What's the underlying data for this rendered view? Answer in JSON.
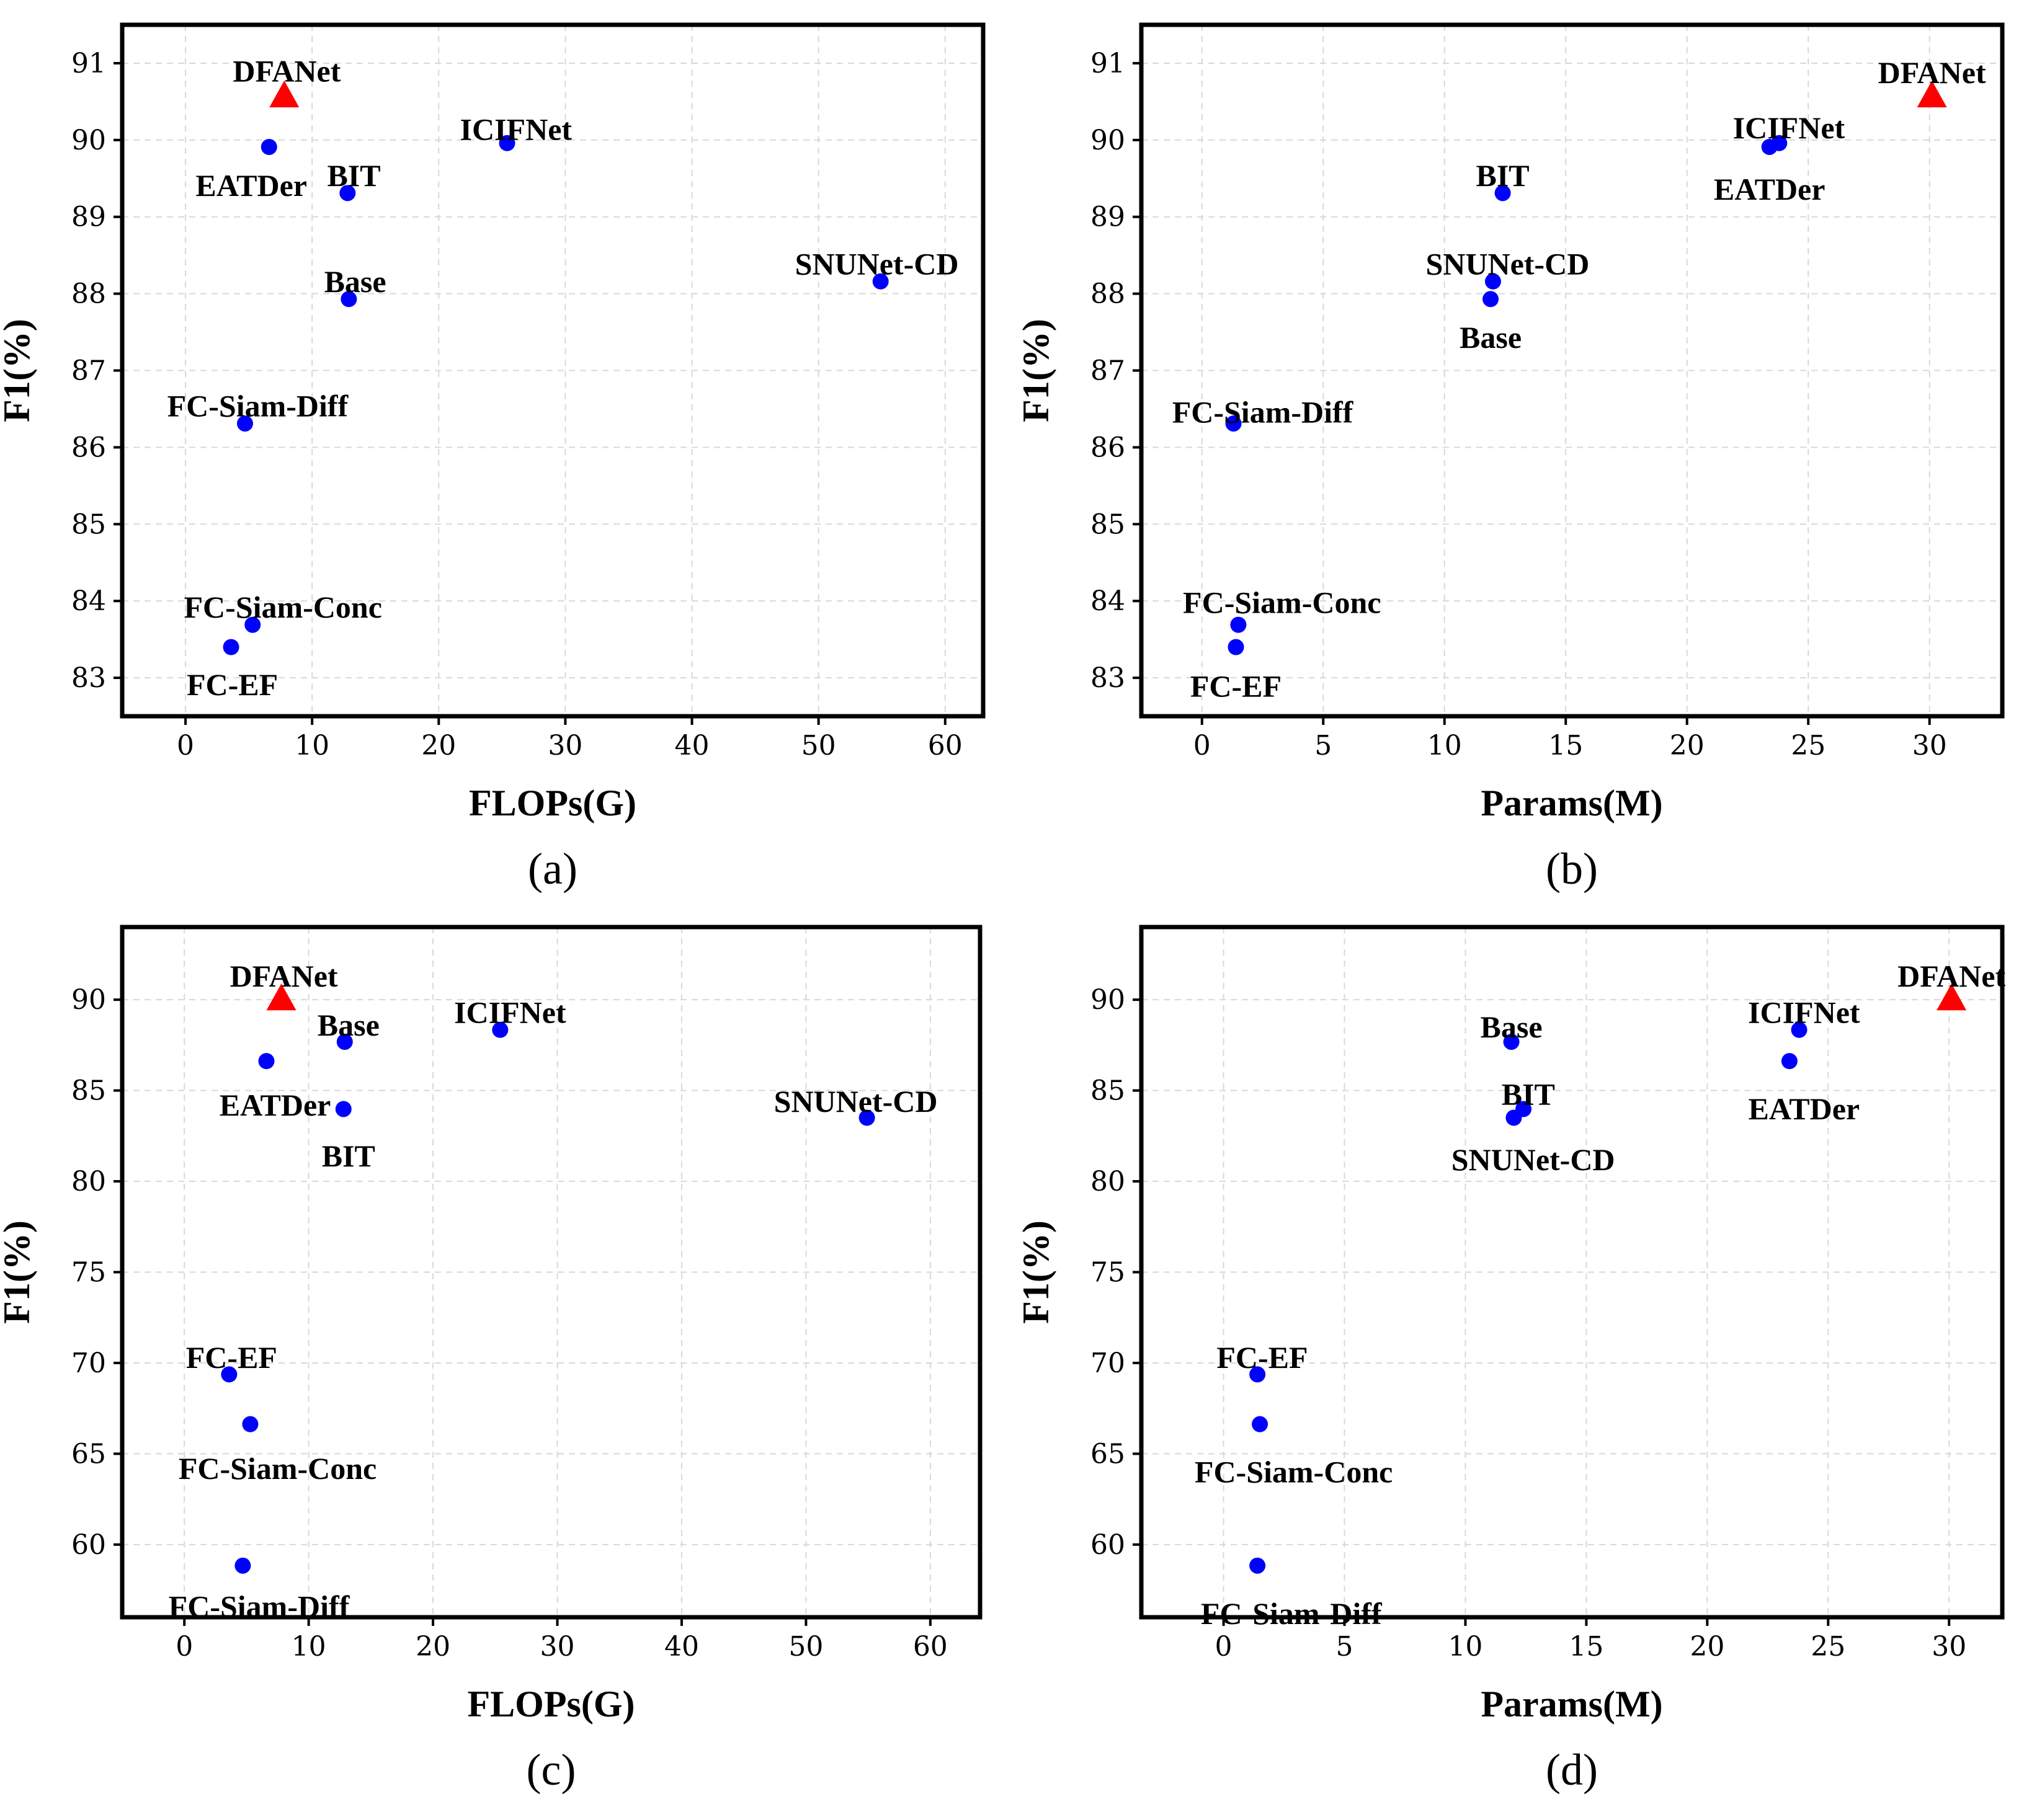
{
  "colors": {
    "model": "#0000ff",
    "highlight": "#ff0000",
    "axes": "#000000",
    "grid": "#d8d8d8"
  },
  "chart_data": [
    {
      "type": "scatter",
      "caption": "(a)",
      "xlabel": "FLOPs(G)",
      "ylabel": "F1(%)",
      "xlim": [
        -5,
        63
      ],
      "ylim": [
        82.5,
        91.5
      ],
      "xticks": [
        0,
        10,
        20,
        30,
        40,
        50,
        60
      ],
      "yticks": [
        83,
        84,
        85,
        86,
        87,
        88,
        89,
        90,
        91
      ],
      "grid": true,
      "points": [
        {
          "label": "DFANet",
          "x": 7.8,
          "y": 90.58,
          "marker": "triangle",
          "color": "#ff0000",
          "lx": 8.0,
          "ly": 90.9,
          "anchor": "middle"
        },
        {
          "label": "EATDer",
          "x": 6.6,
          "y": 89.91,
          "marker": "circle",
          "color": "#0000ff",
          "lx": 5.2,
          "ly": 89.41,
          "anchor": "middle"
        },
        {
          "label": "BIT",
          "x": 12.8,
          "y": 89.31,
          "marker": "circle",
          "color": "#0000ff",
          "lx": 13.3,
          "ly": 89.54,
          "anchor": "middle"
        },
        {
          "label": "ICIFNet",
          "x": 25.4,
          "y": 89.96,
          "marker": "circle",
          "color": "#0000ff",
          "lx": 26.1,
          "ly": 90.14,
          "anchor": "middle"
        },
        {
          "label": "Base",
          "x": 12.9,
          "y": 87.93,
          "marker": "circle",
          "color": "#0000ff",
          "lx": 13.4,
          "ly": 88.16,
          "anchor": "middle"
        },
        {
          "label": "SNUNet-CD",
          "x": 54.9,
          "y": 88.16,
          "marker": "circle",
          "color": "#0000ff",
          "lx": 54.6,
          "ly": 88.39,
          "anchor": "middle"
        },
        {
          "label": "FC-Siam-Diff",
          "x": 4.7,
          "y": 86.31,
          "marker": "circle",
          "color": "#0000ff",
          "lx": 5.7,
          "ly": 86.54,
          "anchor": "middle"
        },
        {
          "label": "FC-Siam-Conc",
          "x": 5.3,
          "y": 83.69,
          "marker": "circle",
          "color": "#0000ff",
          "lx": 7.7,
          "ly": 83.92,
          "anchor": "middle"
        },
        {
          "label": "FC-EF",
          "x": 3.6,
          "y": 83.4,
          "marker": "circle",
          "color": "#0000ff",
          "lx": 3.7,
          "ly": 82.91,
          "anchor": "middle"
        }
      ]
    },
    {
      "type": "scatter",
      "caption": "(b)",
      "xlabel": "Params(M)",
      "ylabel": "F1(%)",
      "xlim": [
        -2.5,
        33
      ],
      "ylim": [
        82.5,
        91.5
      ],
      "xticks": [
        0,
        5,
        10,
        15,
        20,
        25,
        30
      ],
      "yticks": [
        83,
        84,
        85,
        86,
        87,
        88,
        89,
        90,
        91
      ],
      "grid": true,
      "points": [
        {
          "label": "DFANet",
          "x": 30.1,
          "y": 90.58,
          "marker": "triangle",
          "color": "#ff0000",
          "lx": 30.1,
          "ly": 90.88,
          "anchor": "middle"
        },
        {
          "label": "ICIFNet",
          "x": 23.8,
          "y": 89.96,
          "marker": "circle",
          "color": "#0000ff",
          "lx": 24.2,
          "ly": 90.16,
          "anchor": "middle"
        },
        {
          "label": "EATDer",
          "x": 23.4,
          "y": 89.91,
          "marker": "circle",
          "color": "#0000ff",
          "lx": 23.4,
          "ly": 89.36,
          "anchor": "middle"
        },
        {
          "label": "BIT",
          "x": 12.4,
          "y": 89.31,
          "marker": "circle",
          "color": "#0000ff",
          "lx": 12.4,
          "ly": 89.54,
          "anchor": "middle"
        },
        {
          "label": "SNUNet-CD",
          "x": 12.0,
          "y": 88.16,
          "marker": "circle",
          "color": "#0000ff",
          "lx": 12.6,
          "ly": 88.39,
          "anchor": "middle"
        },
        {
          "label": "Base",
          "x": 11.9,
          "y": 87.93,
          "marker": "circle",
          "color": "#0000ff",
          "lx": 11.9,
          "ly": 87.43,
          "anchor": "middle"
        },
        {
          "label": "FC-Siam-Diff",
          "x": 1.3,
          "y": 86.31,
          "marker": "circle",
          "color": "#0000ff",
          "lx": 2.5,
          "ly": 86.46,
          "anchor": "middle"
        },
        {
          "label": "FC-Siam-Conc",
          "x": 1.5,
          "y": 83.69,
          "marker": "circle",
          "color": "#0000ff",
          "lx": 3.3,
          "ly": 83.98,
          "anchor": "middle"
        },
        {
          "label": "FC-EF",
          "x": 1.4,
          "y": 83.4,
          "marker": "circle",
          "color": "#0000ff",
          "lx": 1.4,
          "ly": 82.89,
          "anchor": "middle"
        }
      ]
    },
    {
      "type": "scatter",
      "caption": "(c)",
      "xlabel": "FLOPs(G)",
      "ylabel": "F1(%)",
      "xlim": [
        -5,
        64
      ],
      "ylim": [
        56,
        94
      ],
      "xticks": [
        0,
        10,
        20,
        30,
        40,
        50,
        60
      ],
      "yticks": [
        60,
        65,
        70,
        75,
        80,
        85,
        90
      ],
      "grid": true,
      "points": [
        {
          "label": "DFANet",
          "x": 7.8,
          "y": 90.07,
          "marker": "triangle",
          "color": "#ff0000",
          "lx": 8.0,
          "ly": 91.3,
          "anchor": "middle"
        },
        {
          "label": "Base",
          "x": 12.9,
          "y": 87.68,
          "marker": "circle",
          "color": "#0000ff",
          "lx": 13.2,
          "ly": 88.6,
          "anchor": "middle"
        },
        {
          "label": "ICIFNet",
          "x": 25.4,
          "y": 88.34,
          "marker": "circle",
          "color": "#0000ff",
          "lx": 26.2,
          "ly": 89.3,
          "anchor": "middle"
        },
        {
          "label": "EATDer",
          "x": 6.6,
          "y": 86.62,
          "marker": "circle",
          "color": "#0000ff",
          "lx": 7.3,
          "ly": 84.2,
          "anchor": "middle"
        },
        {
          "label": "BIT",
          "x": 12.8,
          "y": 83.98,
          "marker": "circle",
          "color": "#0000ff",
          "lx": 13.2,
          "ly": 81.4,
          "anchor": "middle"
        },
        {
          "label": "SNUNet-CD",
          "x": 54.9,
          "y": 83.5,
          "marker": "circle",
          "color": "#0000ff",
          "lx": 54.0,
          "ly": 84.4,
          "anchor": "middle"
        },
        {
          "label": "FC-EF",
          "x": 3.6,
          "y": 69.37,
          "marker": "circle",
          "color": "#0000ff",
          "lx": 3.8,
          "ly": 70.3,
          "anchor": "middle"
        },
        {
          "label": "FC-Siam-Conc",
          "x": 5.3,
          "y": 66.63,
          "marker": "circle",
          "color": "#0000ff",
          "lx": 7.5,
          "ly": 64.2,
          "anchor": "middle"
        },
        {
          "label": "FC-Siam-Diff",
          "x": 4.7,
          "y": 58.84,
          "marker": "circle",
          "color": "#0000ff",
          "lx": 6.0,
          "ly": 56.6,
          "anchor": "middle"
        }
      ]
    },
    {
      "type": "scatter",
      "caption": "(d)",
      "xlabel": "Params(M)",
      "ylabel": "F1(%)",
      "xlim": [
        -3.4,
        32.2
      ],
      "ylim": [
        56,
        94
      ],
      "xticks": [
        0,
        5,
        10,
        15,
        20,
        25,
        30
      ],
      "yticks": [
        60,
        65,
        70,
        75,
        80,
        85,
        90
      ],
      "grid": true,
      "points": [
        {
          "label": "DFANet",
          "x": 30.1,
          "y": 90.07,
          "marker": "triangle",
          "color": "#ff0000",
          "lx": 30.1,
          "ly": 91.3,
          "anchor": "middle"
        },
        {
          "label": "ICIFNet",
          "x": 23.8,
          "y": 88.34,
          "marker": "circle",
          "color": "#0000ff",
          "lx": 24.0,
          "ly": 89.3,
          "anchor": "middle"
        },
        {
          "label": "EATDer",
          "x": 23.4,
          "y": 86.62,
          "marker": "circle",
          "color": "#0000ff",
          "lx": 24.0,
          "ly": 84.0,
          "anchor": "middle"
        },
        {
          "label": "Base",
          "x": 11.9,
          "y": 87.68,
          "marker": "circle",
          "color": "#0000ff",
          "lx": 11.9,
          "ly": 88.5,
          "anchor": "middle"
        },
        {
          "label": "BIT",
          "x": 12.4,
          "y": 83.98,
          "marker": "circle",
          "color": "#0000ff",
          "lx": 12.6,
          "ly": 84.8,
          "anchor": "middle"
        },
        {
          "label": "SNUNet-CD",
          "x": 12.0,
          "y": 83.5,
          "marker": "circle",
          "color": "#0000ff",
          "lx": 12.8,
          "ly": 81.2,
          "anchor": "middle"
        },
        {
          "label": "FC-EF",
          "x": 1.4,
          "y": 69.37,
          "marker": "circle",
          "color": "#0000ff",
          "lx": 1.6,
          "ly": 70.3,
          "anchor": "middle"
        },
        {
          "label": "FC-Siam-Conc",
          "x": 1.5,
          "y": 66.63,
          "marker": "circle",
          "color": "#0000ff",
          "lx": 2.9,
          "ly": 64.0,
          "anchor": "middle"
        },
        {
          "label": "FC-Siam-Diff",
          "x": 1.4,
          "y": 58.84,
          "marker": "circle",
          "color": "#0000ff",
          "lx": 2.8,
          "ly": 56.2,
          "anchor": "middle"
        }
      ]
    }
  ]
}
